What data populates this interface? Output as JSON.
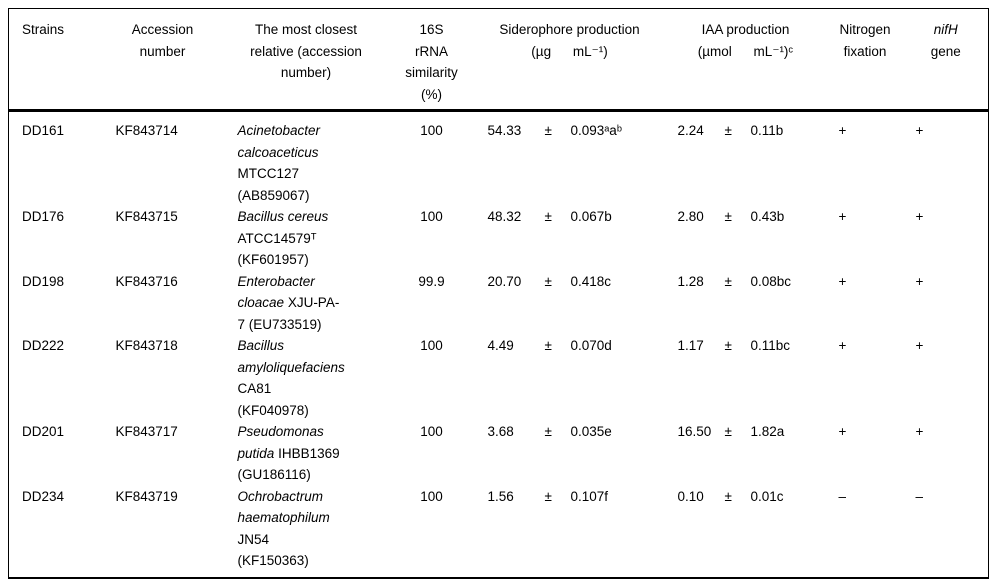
{
  "table": {
    "headers": {
      "strains": "Strains",
      "accession": "Accession number",
      "relative": "The most closest relative (accession number)",
      "similarity": "16S rRNA similarity (%)",
      "siderophore_title": "Siderophore production",
      "siderophore_units": "(µg mL⁻¹)",
      "iaa_title": "IAA production",
      "iaa_units": "(µmol mL⁻¹)ᶜ",
      "nitrogen": "Nitrogen fixation",
      "nifh_italic": "nifH",
      "nifh_rest": "gene"
    },
    "rows": [
      {
        "strain": "DD161",
        "accession": "KF843714",
        "species": "Acinetobacter calcoaceticus",
        "species_rest": "MTCC127 (AB859067)",
        "similarity": "100",
        "sid": {
          "value": "54.33",
          "pm": "±",
          "sd": "0.093ᵃaᵇ"
        },
        "iaa": {
          "value": "2.24",
          "pm": "±",
          "sd": "0.11b"
        },
        "nitrogen": "+",
        "nifh": "+"
      },
      {
        "strain": "DD176",
        "accession": "KF843715",
        "species": "Bacillus cereus",
        "species_rest": "ATCC14579ᵀ (KF601957)",
        "similarity": "100",
        "sid": {
          "value": "48.32",
          "pm": "±",
          "sd": "0.067b"
        },
        "iaa": {
          "value": "2.80",
          "pm": "±",
          "sd": "0.43b"
        },
        "nitrogen": "+",
        "nifh": "+"
      },
      {
        "strain": "DD198",
        "accession": "KF843716",
        "species": "Enterobacter cloacae",
        "species_rest": "XJU-PA-7 (EU733519)",
        "similarity": "99.9",
        "sid": {
          "value": "20.70",
          "pm": "±",
          "sd": "0.418c"
        },
        "iaa": {
          "value": "1.28",
          "pm": "±",
          "sd": "0.08bc"
        },
        "nitrogen": "+",
        "nifh": "+"
      },
      {
        "strain": "DD222",
        "accession": "KF843718",
        "species": "Bacillus amyloliquefaciens",
        "species_rest": "CA81 (KF040978)",
        "similarity": "100",
        "sid": {
          "value": "4.49",
          "pm": "±",
          "sd": "0.070d"
        },
        "iaa": {
          "value": "1.17",
          "pm": "±",
          "sd": "0.11bc"
        },
        "nitrogen": "+",
        "nifh": "+"
      },
      {
        "strain": "DD201",
        "accession": "KF843717",
        "species": "Pseudomonas putida",
        "species_rest": "IHBB1369 (GU186116)",
        "similarity": "100",
        "sid": {
          "value": "3.68",
          "pm": "±",
          "sd": "0.035e"
        },
        "iaa": {
          "value": "16.50",
          "pm": "±",
          "sd": "1.82a"
        },
        "nitrogen": "+",
        "nifh": "+"
      },
      {
        "strain": "DD234",
        "accession": "KF843719",
        "species": "Ochrobactrum haematophilum",
        "species_rest": "JN54 (KF150363)",
        "similarity": "100",
        "sid": {
          "value": "1.56",
          "pm": "±",
          "sd": "0.107f"
        },
        "iaa": {
          "value": "0.10",
          "pm": "±",
          "sd": "0.01c"
        },
        "nitrogen": "–",
        "nifh": "–"
      }
    ]
  }
}
